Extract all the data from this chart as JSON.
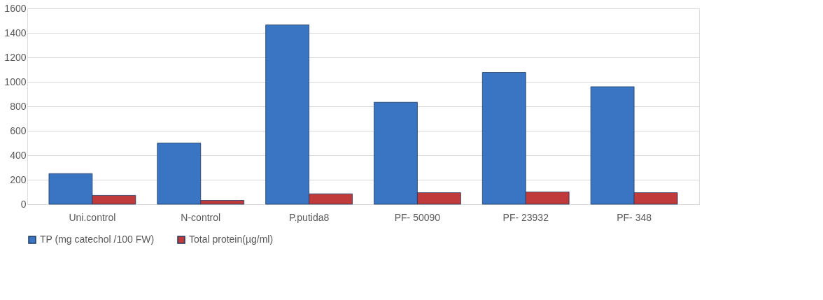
{
  "chart_data": {
    "type": "bar",
    "categories": [
      "Uni.control",
      "N-control",
      "P.putida8",
      "PF- 50090",
      "PF- 23932",
      "PF- 348"
    ],
    "series": [
      {
        "name": "TP (mg catechol /100 FW)",
        "color": "#3a75c4",
        "values": [
          250,
          500,
          1465,
          833,
          1077,
          960
        ]
      },
      {
        "name": "Total protein(µg/ml)",
        "color": "#c0393b",
        "values": [
          72,
          31,
          85,
          94,
          100,
          94
        ]
      }
    ],
    "ylim": [
      0,
      1600
    ],
    "yticks": [
      0,
      200,
      400,
      600,
      800,
      1000,
      1200,
      1400,
      1600
    ],
    "grid": "y",
    "legend": "bottom"
  }
}
